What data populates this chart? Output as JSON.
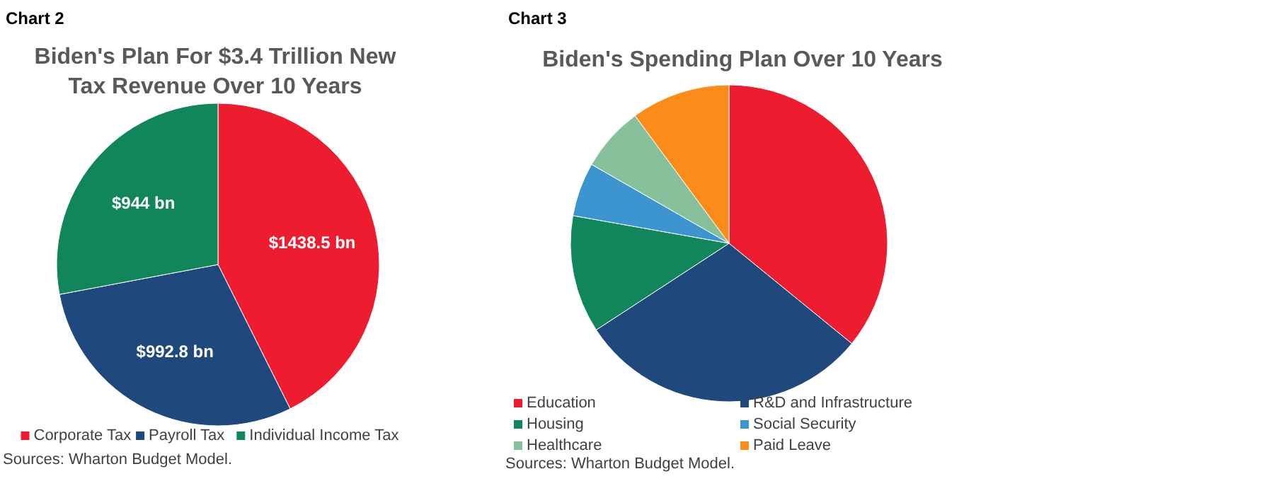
{
  "chart_data": [
    {
      "type": "pie",
      "subtitle": "Chart 2",
      "title": "Biden's Plan For $3.4 Trillion New Tax Revenue Over 10 Years",
      "categories": [
        "Corporate Tax",
        "Payroll Tax",
        "Individual Income Tax"
      ],
      "values": [
        1438.5,
        992.8,
        944
      ],
      "colors": [
        "#ed1c2e",
        "#1f497d",
        "#11865a"
      ],
      "value_labels": [
        "$1438.5 bn",
        "$992.8 bn",
        "$944 bn"
      ],
      "legend": "bottom",
      "annotations": [
        "Sources: Wharton Budget Model."
      ]
    },
    {
      "type": "pie",
      "subtitle": "Chart 3",
      "title": "Biden's Spending Plan Over 10 Years",
      "categories": [
        "Education",
        "R&D and Infrastructure",
        "Housing",
        "Social Security",
        "Healthcare",
        "Paid Leave"
      ],
      "values": [
        35.9,
        29.9,
        12.0,
        5.5,
        6.6,
        10.1
      ],
      "colors": [
        "#ed1c2e",
        "#1f497d",
        "#11865a",
        "#3d95d0",
        "#87c19c",
        "#fb8c1a"
      ],
      "legend": "bottom",
      "annotations": [
        "Sources: Wharton Budget Model."
      ]
    }
  ]
}
